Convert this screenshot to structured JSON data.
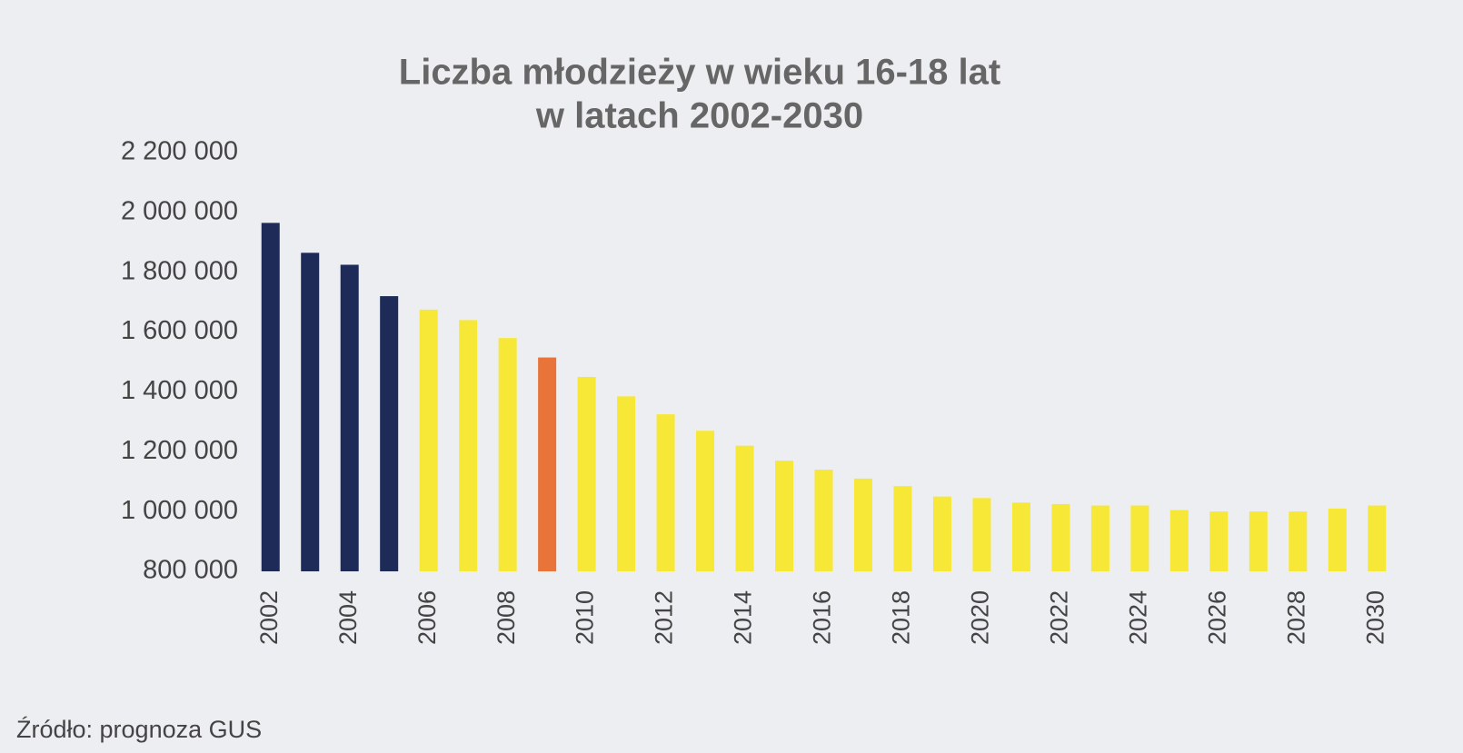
{
  "chart_data": {
    "type": "bar",
    "title": [
      "Liczba młodzieży w wieku 16-18 lat",
      "w latach 2002-2030"
    ],
    "source": "Źródło: prognoza GUS",
    "categories": [
      "2002",
      null,
      "2004",
      null,
      "2006",
      null,
      "2008",
      null,
      "2010",
      null,
      "2012",
      null,
      "2014",
      null,
      "2016",
      null,
      "2018",
      null,
      "2020",
      null,
      "2022",
      null,
      "2024",
      null,
      "2026",
      null,
      "2028",
      null,
      "2030"
    ],
    "values": [
      1965000,
      1865000,
      1825000,
      1720000,
      1675000,
      1640000,
      1580000,
      1515000,
      1450000,
      1385000,
      1325000,
      1270000,
      1220000,
      1170000,
      1140000,
      1110000,
      1085000,
      1050000,
      1045000,
      1030000,
      1025000,
      1020000,
      1020000,
      1005000,
      1000000,
      1000000,
      1000000,
      1010000,
      1020000
    ],
    "colors": [
      "#1e2b58",
      "#1e2b58",
      "#1e2b58",
      "#1e2b58",
      "#f7e838",
      "#f7e838",
      "#f7e838",
      "#e8743a",
      "#f7e838",
      "#f7e838",
      "#f7e838",
      "#f7e838",
      "#f7e838",
      "#f7e838",
      "#f7e838",
      "#f7e838",
      "#f7e838",
      "#f7e838",
      "#f7e838",
      "#f7e838",
      "#f7e838",
      "#f7e838",
      "#f7e838",
      "#f7e838",
      "#f7e838",
      "#f7e838",
      "#f7e838",
      "#f7e838",
      "#f7e838"
    ],
    "ylim": [
      800000,
      2200000
    ],
    "yticks": [
      {
        "value": 800000,
        "label": "800 000"
      },
      {
        "value": 1000000,
        "label": "1 000 000"
      },
      {
        "value": 1200000,
        "label": "1 200 000"
      },
      {
        "value": 1400000,
        "label": "1 400 000"
      },
      {
        "value": 1600000,
        "label": "1 600 000"
      },
      {
        "value": 1800000,
        "label": "1 800 000"
      },
      {
        "value": 2000000,
        "label": "2 000 000"
      },
      {
        "value": 2200000,
        "label": "2 200 000"
      }
    ],
    "grid": false
  }
}
